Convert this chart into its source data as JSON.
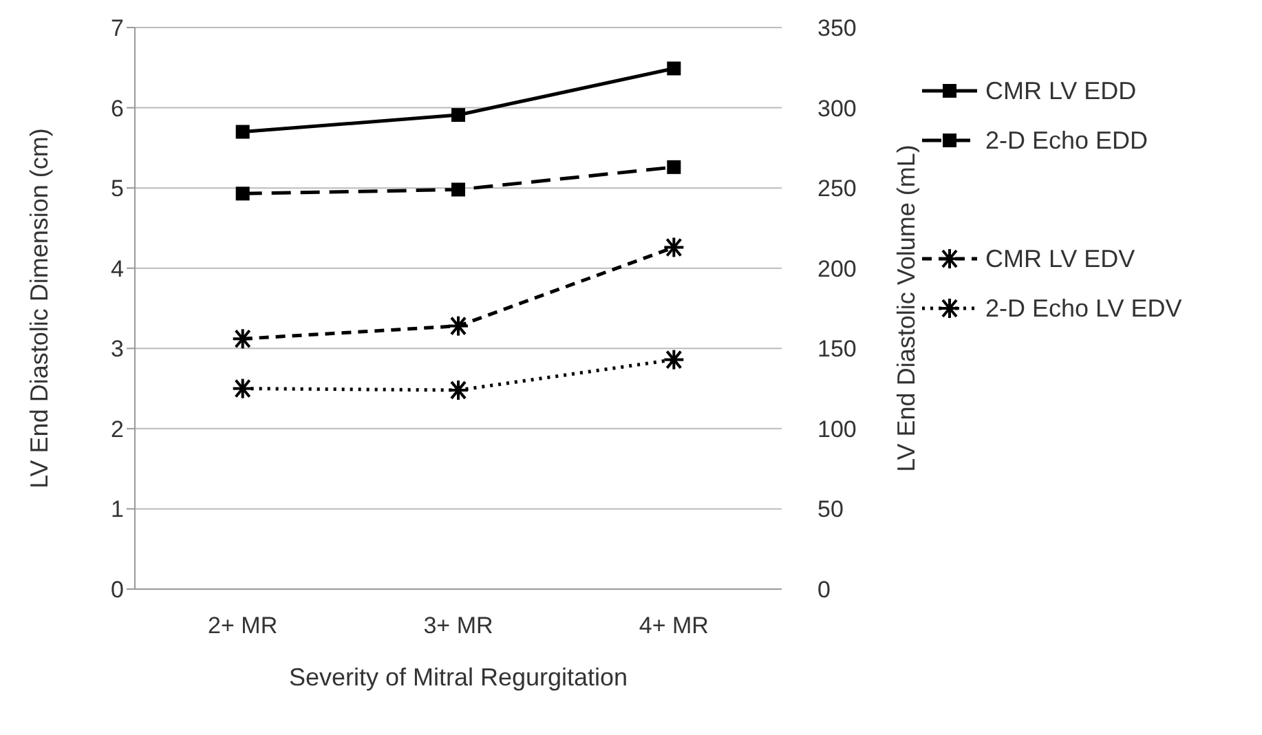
{
  "chart_data": {
    "type": "line",
    "xlabel": "Severity of Mitral Regurgitation",
    "ylabel": "LV End Diastolic Dimension (cm)",
    "y2label": "LV End Diastolic Volume (mL)",
    "categories": [
      "2+ MR",
      "3+ MR",
      "4+ MR"
    ],
    "series": [
      {
        "name": "CMR LV EDD",
        "color": "#000000",
        "values": [
          5.7,
          5.91,
          6.49
        ],
        "marker": "square",
        "line_style": "solid"
      },
      {
        "name": "2-D Echo EDD",
        "color": "#000000",
        "values": [
          4.93,
          4.98,
          5.26
        ],
        "marker": "square",
        "line_style": "dashed"
      },
      {
        "name": "CMR LV EDV",
        "color": "#000000",
        "values": [
          156,
          164,
          213
        ],
        "marker": "cross",
        "line_style": "dashed",
        "axis": "y2"
      },
      {
        "name": "2-D Echo LV EDV",
        "color": "#000000",
        "values": [
          125,
          124,
          143
        ],
        "marker": "cross",
        "line_style": "dotted",
        "axis": "y2"
      }
    ],
    "ylim": [
      0,
      7
    ],
    "yticks": [
      0,
      1,
      2,
      3,
      4,
      5,
      6,
      7
    ],
    "y2lim": [
      0,
      350
    ],
    "y2ticks": [
      0,
      50,
      100,
      150,
      200,
      250,
      300,
      350
    ],
    "grid": "y",
    "legend": "right"
  }
}
